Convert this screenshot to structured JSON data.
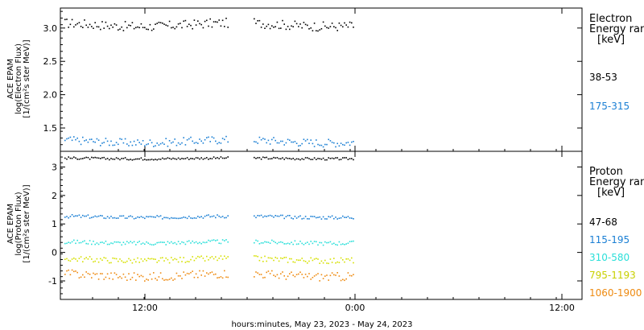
{
  "chart_data": [
    {
      "type": "scatter",
      "panel": "electron",
      "ylabel_lines": [
        "ACE EPAM",
        "log(Electron Flux)",
        "[1/(cm²s ster MeV)]"
      ],
      "yticks": [
        "3.0",
        "2.5",
        "2.0",
        "1.5"
      ],
      "ylim": [
        1.15,
        3.3
      ],
      "legend_title_lines": [
        "Electron",
        "Energy range",
        "[keV]"
      ],
      "series": [
        {
          "name": "38-53",
          "color": "#000000",
          "level": 3.05,
          "spread": 0.07
        },
        {
          "name": "175-315",
          "color": "#1a7fd4",
          "level": 1.3,
          "spread": 0.06
        }
      ]
    },
    {
      "type": "scatter",
      "panel": "proton",
      "ylabel_lines": [
        "ACE EPAM",
        "log(Proton Flux)",
        "[1/(cm²s ster MeV)]"
      ],
      "yticks": [
        "3",
        "2",
        "1",
        "0",
        "-1"
      ],
      "ylim": [
        -1.65,
        3.55
      ],
      "legend_title_lines": [
        "Proton",
        "Energy range",
        "[keV]"
      ],
      "series": [
        {
          "name": "47-68",
          "color": "#000000",
          "level": 3.3,
          "spread": 0.04
        },
        {
          "name": "115-195",
          "color": "#1a7fd4",
          "level": 1.25,
          "spread": 0.06
        },
        {
          "name": "310-580",
          "color": "#2adfd9",
          "level": 0.35,
          "spread": 0.07
        },
        {
          "name": "795-1193",
          "color": "#d6e000",
          "level": -0.25,
          "spread": 0.1
        },
        {
          "name": "1060-1900",
          "color": "#ee8a10",
          "level": -0.8,
          "spread": 0.15
        }
      ]
    }
  ],
  "x_axis": {
    "tick_labels": [
      "12:00",
      "0:00",
      "12:00"
    ],
    "title": "hours:minutes, May 23, 2023 - May 24, 2023"
  }
}
